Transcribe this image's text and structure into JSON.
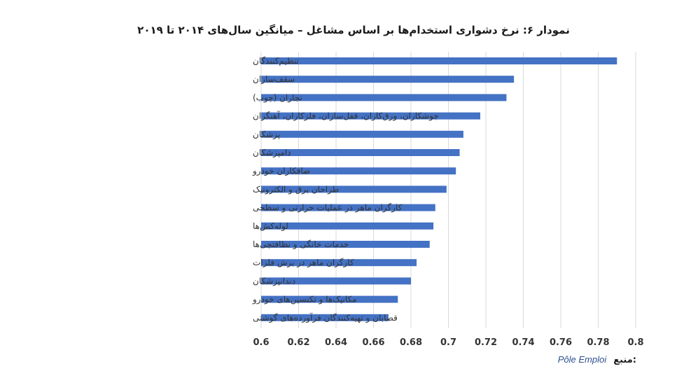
{
  "chart_data": {
    "type": "bar",
    "orientation": "horizontal",
    "title": "نمودار ۶: نرخ دشواری استخدام‌ها بر اساس مشاغل – میانگین سال‌های ۲۰۱۴ تا ۲۰۱۹",
    "categories": [
      "تنظیم‌کنندگان",
      "سقف‌سازان",
      "نجاران (چوب)",
      "جوشکاران، ورق‌کاران، قفل‌سازان، فلزکاران، آهنگران",
      "پزشکان",
      "دامپزشکان",
      "صافکاران خودرو",
      "طراحان برق و الکترونیک",
      "کارگران ماهر در عملیات حرارتی و سطحی",
      "لوله‌کش‌ها",
      "خدمات خانگی و نظافتچی‌ها",
      "کارگران ماهر در برش فلزات",
      "دندانپزشکان",
      "مکانیک‌ها و تکنسین‌های خودرو",
      "قصابان و تهیه‌کنندگان فرآورده‌های گوشتی"
    ],
    "values": [
      0.79,
      0.735,
      0.731,
      0.717,
      0.708,
      0.706,
      0.704,
      0.699,
      0.693,
      0.692,
      0.69,
      0.683,
      0.68,
      0.673,
      0.668
    ],
    "xlim": [
      0.6,
      0.8
    ],
    "xticks": [
      "0.6",
      "0.62",
      "0.64",
      "0.66",
      "0.68",
      "0.7",
      "0.72",
      "0.74",
      "0.76",
      "0.78",
      "0.8"
    ],
    "bar_color": "#4472C4",
    "grid": "vertical",
    "grid_color": "#d9d9d9"
  },
  "source": {
    "label": "منبع:",
    "value": "Pôle Emploi"
  }
}
